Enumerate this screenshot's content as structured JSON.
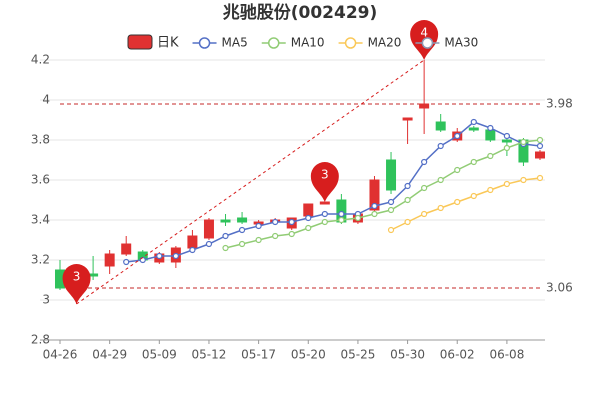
{
  "chart_data": {
    "type": "candlestick",
    "title": "兆驰股份(002429)",
    "categories": [
      "04-26",
      null,
      null,
      "04-29",
      null,
      null,
      "05-09",
      null,
      null,
      "05-12",
      null,
      null,
      "05-17",
      null,
      null,
      "05-20",
      null,
      null,
      "05-25",
      null,
      null,
      "05-30",
      null,
      null,
      "06-02",
      null,
      null,
      "06-08",
      null,
      null
    ],
    "candle_name": "日K",
    "up_color": "#e03131",
    "down_color": "#2fc25b",
    "open": [
      3.15,
      3.05,
      3.13,
      3.17,
      3.23,
      3.24,
      3.19,
      3.19,
      3.26,
      3.31,
      3.4,
      3.41,
      3.38,
      3.39,
      3.36,
      3.42,
      3.48,
      3.5,
      3.39,
      3.45,
      3.7,
      3.9,
      3.96,
      3.89,
      3.8,
      3.86,
      3.85,
      3.8,
      3.8,
      3.71
    ],
    "high": [
      3.2,
      3.13,
      3.22,
      3.25,
      3.32,
      3.25,
      3.24,
      3.27,
      3.35,
      3.41,
      3.43,
      3.44,
      3.4,
      3.41,
      3.41,
      3.48,
      3.49,
      3.53,
      3.44,
      3.62,
      3.74,
      3.91,
      4.2,
      3.93,
      3.86,
      3.87,
      3.87,
      3.82,
      3.81,
      3.75
    ],
    "low": [
      3.05,
      2.98,
      3.1,
      3.13,
      3.22,
      3.19,
      3.18,
      3.16,
      3.25,
      3.3,
      3.37,
      3.38,
      3.36,
      3.38,
      3.35,
      3.41,
      3.48,
      3.38,
      3.38,
      3.42,
      3.53,
      3.78,
      3.83,
      3.84,
      3.79,
      3.84,
      3.79,
      3.72,
      3.67,
      3.7
    ],
    "close": [
      3.06,
      3.12,
      3.12,
      3.23,
      3.28,
      3.2,
      3.23,
      3.26,
      3.32,
      3.4,
      3.39,
      3.39,
      3.39,
      3.4,
      3.41,
      3.48,
      3.49,
      3.39,
      3.43,
      3.6,
      3.55,
      3.91,
      3.98,
      3.85,
      3.84,
      3.85,
      3.8,
      3.79,
      3.69,
      3.74
    ],
    "series": [
      {
        "name": "MA5",
        "color": "#5470c6",
        "values": [
          null,
          null,
          null,
          null,
          3.19,
          3.2,
          3.22,
          3.22,
          3.25,
          3.28,
          3.32,
          3.35,
          3.37,
          3.39,
          3.39,
          3.41,
          3.43,
          3.43,
          3.43,
          3.47,
          3.49,
          3.57,
          3.69,
          3.77,
          3.82,
          3.89,
          3.86,
          3.82,
          3.78,
          3.77
        ]
      },
      {
        "name": "MA10",
        "color": "#91cc75",
        "values": [
          null,
          null,
          null,
          null,
          null,
          null,
          null,
          null,
          null,
          null,
          3.26,
          3.28,
          3.3,
          3.32,
          3.33,
          3.36,
          3.39,
          3.4,
          3.41,
          3.43,
          3.45,
          3.5,
          3.56,
          3.6,
          3.65,
          3.69,
          3.72,
          3.76,
          3.79,
          3.8
        ]
      },
      {
        "name": "MA20",
        "color": "#fac858",
        "values": [
          null,
          null,
          null,
          null,
          null,
          null,
          null,
          null,
          null,
          null,
          null,
          null,
          null,
          null,
          null,
          null,
          null,
          null,
          null,
          null,
          3.35,
          3.39,
          3.43,
          3.46,
          3.49,
          3.52,
          3.55,
          3.58,
          3.6,
          3.61
        ]
      },
      {
        "name": "MA30",
        "color": "#8d98b3",
        "values": [
          null,
          null,
          null,
          null,
          null,
          null,
          null,
          null,
          null,
          null,
          null,
          null,
          null,
          null,
          null,
          null,
          null,
          null,
          null,
          null,
          null,
          null,
          null,
          null,
          null,
          null,
          null,
          null,
          null,
          null
        ]
      }
    ],
    "ylim": [
      2.8,
      4.2
    ],
    "yticks": [
      2.8,
      3,
      3.2,
      3.4,
      3.6,
      3.8,
      4,
      4.2
    ],
    "grid": true,
    "reference_lines": [
      3.98,
      3.06
    ],
    "reference_color": "#c62828",
    "annotations": [
      {
        "label": "3",
        "index": 1,
        "value": 2.98
      },
      {
        "label": "3",
        "index": 16,
        "value": 3.49
      },
      {
        "label": "4",
        "index": 22,
        "value": 4.2
      }
    ],
    "annotation_color": "#d71e1e"
  }
}
